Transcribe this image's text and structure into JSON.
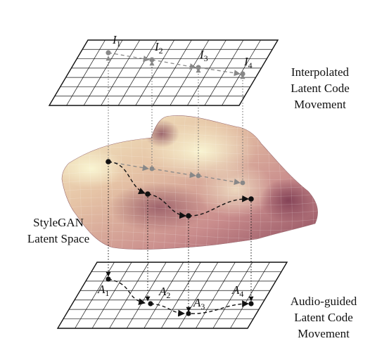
{
  "labels": {
    "top": [
      "Interpolated",
      "Latent Code",
      "Movement"
    ],
    "middle": [
      "StyleGAN",
      "Latent Space"
    ],
    "bottom": [
      "Audio-guided",
      "Latent Code",
      "Movement"
    ]
  },
  "top_points": [
    {
      "letter": "I",
      "sub": "1"
    },
    {
      "letter": "I",
      "sub": "2"
    },
    {
      "letter": "I",
      "sub": "3"
    },
    {
      "letter": "I",
      "sub": "4"
    }
  ],
  "bottom_points": [
    {
      "letter": "A",
      "sub": "1"
    },
    {
      "letter": "A",
      "sub": "2"
    },
    {
      "letter": "A",
      "sub": "3"
    },
    {
      "letter": "A",
      "sub": "4"
    }
  ],
  "colors": {
    "grid": "#111111",
    "interp_path": "#888888",
    "audio_path": "#111111",
    "surface_high": "#f3eec4",
    "surface_low": "#8c4a5c"
  }
}
